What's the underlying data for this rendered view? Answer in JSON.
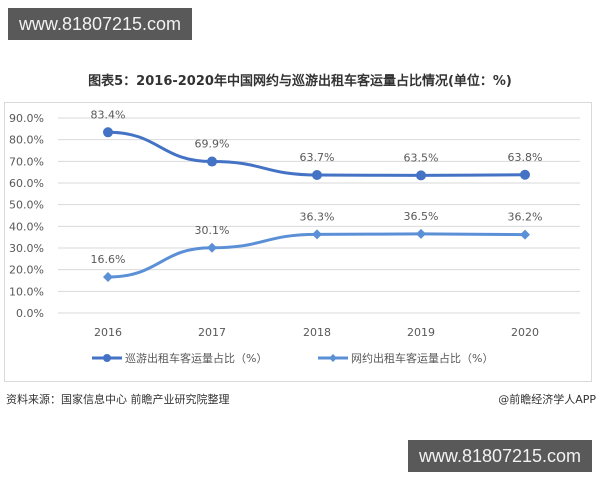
{
  "watermark_top": "www.81807215.com",
  "watermark_bottom": "www.81807215.com",
  "title": "图表5：2016-2020年中国网约与巡游出租车客运量占比情况(单位：%)",
  "source": "资料来源：国家信息中心 前瞻产业研究院整理",
  "credit": "@前瞻经济学人APP",
  "colors": {
    "series1": "#4472c4",
    "series2": "#5b8fd6",
    "grid": "#d9d9d9",
    "text": "#595959"
  },
  "chart_data": {
    "type": "line",
    "title": "图表5：2016-2020年中国网约与巡游出租车客运量占比情况(单位：%)",
    "xlabel": "",
    "ylabel": "",
    "categories": [
      "2016",
      "2017",
      "2018",
      "2019",
      "2020"
    ],
    "y_ticks": [
      "0.0%",
      "10.0%",
      "20.0%",
      "30.0%",
      "40.0%",
      "50.0%",
      "60.0%",
      "70.0%",
      "80.0%",
      "90.0%"
    ],
    "ylim": [
      0,
      90
    ],
    "grid": true,
    "legend_position": "bottom",
    "series": [
      {
        "name": "巡游出租车客运量占比（%）",
        "marker": "circle",
        "values": [
          83.4,
          69.9,
          63.7,
          63.5,
          63.8
        ],
        "labels": [
          "83.4%",
          "69.9%",
          "63.7%",
          "63.5%",
          "63.8%"
        ]
      },
      {
        "name": "网约出租车客运量占比（%）",
        "marker": "diamond",
        "values": [
          16.6,
          30.1,
          36.3,
          36.5,
          36.2
        ],
        "labels": [
          "16.6%",
          "30.1%",
          "36.3%",
          "36.5%",
          "36.2%"
        ]
      }
    ]
  }
}
